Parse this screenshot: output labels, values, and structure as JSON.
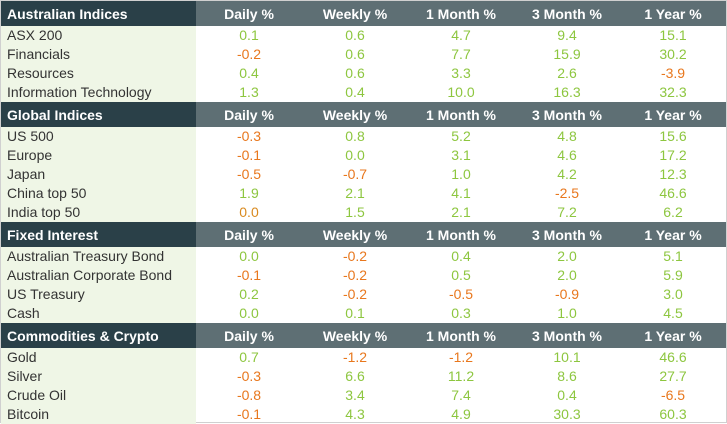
{
  "table": {
    "columns": [
      "Daily %",
      "Weekly %",
      "1 Month %",
      "3 Month %",
      "1 Year %"
    ],
    "colors": {
      "positive": "#8dc63f",
      "negative": "#e8771d",
      "header_dark": "#2a4048",
      "header_mid": "#5e6f74",
      "name_bg": "#eff6e6"
    },
    "sections": [
      {
        "title": "Australian Indices",
        "rows": [
          {
            "name": "ASX 200",
            "values": [
              "0.1",
              "0.6",
              "4.7",
              "9.4",
              "15.1"
            ]
          },
          {
            "name": "Financials",
            "values": [
              "-0.2",
              "0.6",
              "7.7",
              "15.9",
              "30.2"
            ]
          },
          {
            "name": "Resources",
            "values": [
              "0.4",
              "0.6",
              "3.3",
              "2.6",
              "-3.9"
            ]
          },
          {
            "name": "Information Technology",
            "values": [
              "1.3",
              "0.4",
              "10.0",
              "16.3",
              "32.3"
            ]
          }
        ]
      },
      {
        "title": "Global Indices",
        "rows": [
          {
            "name": "US 500",
            "values": [
              "-0.3",
              "0.8",
              "5.2",
              "4.8",
              "15.6"
            ]
          },
          {
            "name": "Europe",
            "values": [
              "-0.1",
              "0.0",
              "3.1",
              "4.6",
              "17.2"
            ]
          },
          {
            "name": "Japan",
            "values": [
              "-0.5",
              "-0.7",
              "1.0",
              "4.2",
              "12.3"
            ]
          },
          {
            "name": "China top 50",
            "values": [
              "1.9",
              "2.1",
              "4.1",
              "-2.5",
              "46.6"
            ]
          },
          {
            "name": "India top 50",
            "values": [
              "0.0",
              "1.5",
              "2.1",
              "7.2",
              "6.2"
            ]
          }
        ]
      },
      {
        "title": "Fixed Interest",
        "rows": [
          {
            "name": "Australian Treasury Bond",
            "values": [
              "0.0",
              "-0.2",
              "0.4",
              "2.0",
              "5.1"
            ]
          },
          {
            "name": "Australian Corporate Bond",
            "values": [
              "-0.1",
              "-0.2",
              "0.5",
              "2.0",
              "5.9"
            ]
          },
          {
            "name": "US Treasury",
            "values": [
              "0.2",
              "-0.2",
              "-0.5",
              "-0.9",
              "3.0"
            ]
          },
          {
            "name": "Cash",
            "values": [
              "0.0",
              "0.1",
              "0.3",
              "1.0",
              "4.5"
            ]
          }
        ]
      },
      {
        "title": "Commodities & Crypto",
        "rows": [
          {
            "name": "Gold",
            "values": [
              "0.7",
              "-1.2",
              "-1.2",
              "10.1",
              "46.6"
            ]
          },
          {
            "name": "Silver",
            "values": [
              "-0.3",
              "6.6",
              "11.2",
              "8.6",
              "27.7"
            ]
          },
          {
            "name": "Crude Oil",
            "values": [
              "-0.8",
              "3.4",
              "7.4",
              "0.4",
              "-6.5"
            ]
          },
          {
            "name": "Bitcoin",
            "values": [
              "-0.1",
              "4.3",
              "4.9",
              "30.3",
              "60.3"
            ]
          }
        ]
      }
    ]
  }
}
